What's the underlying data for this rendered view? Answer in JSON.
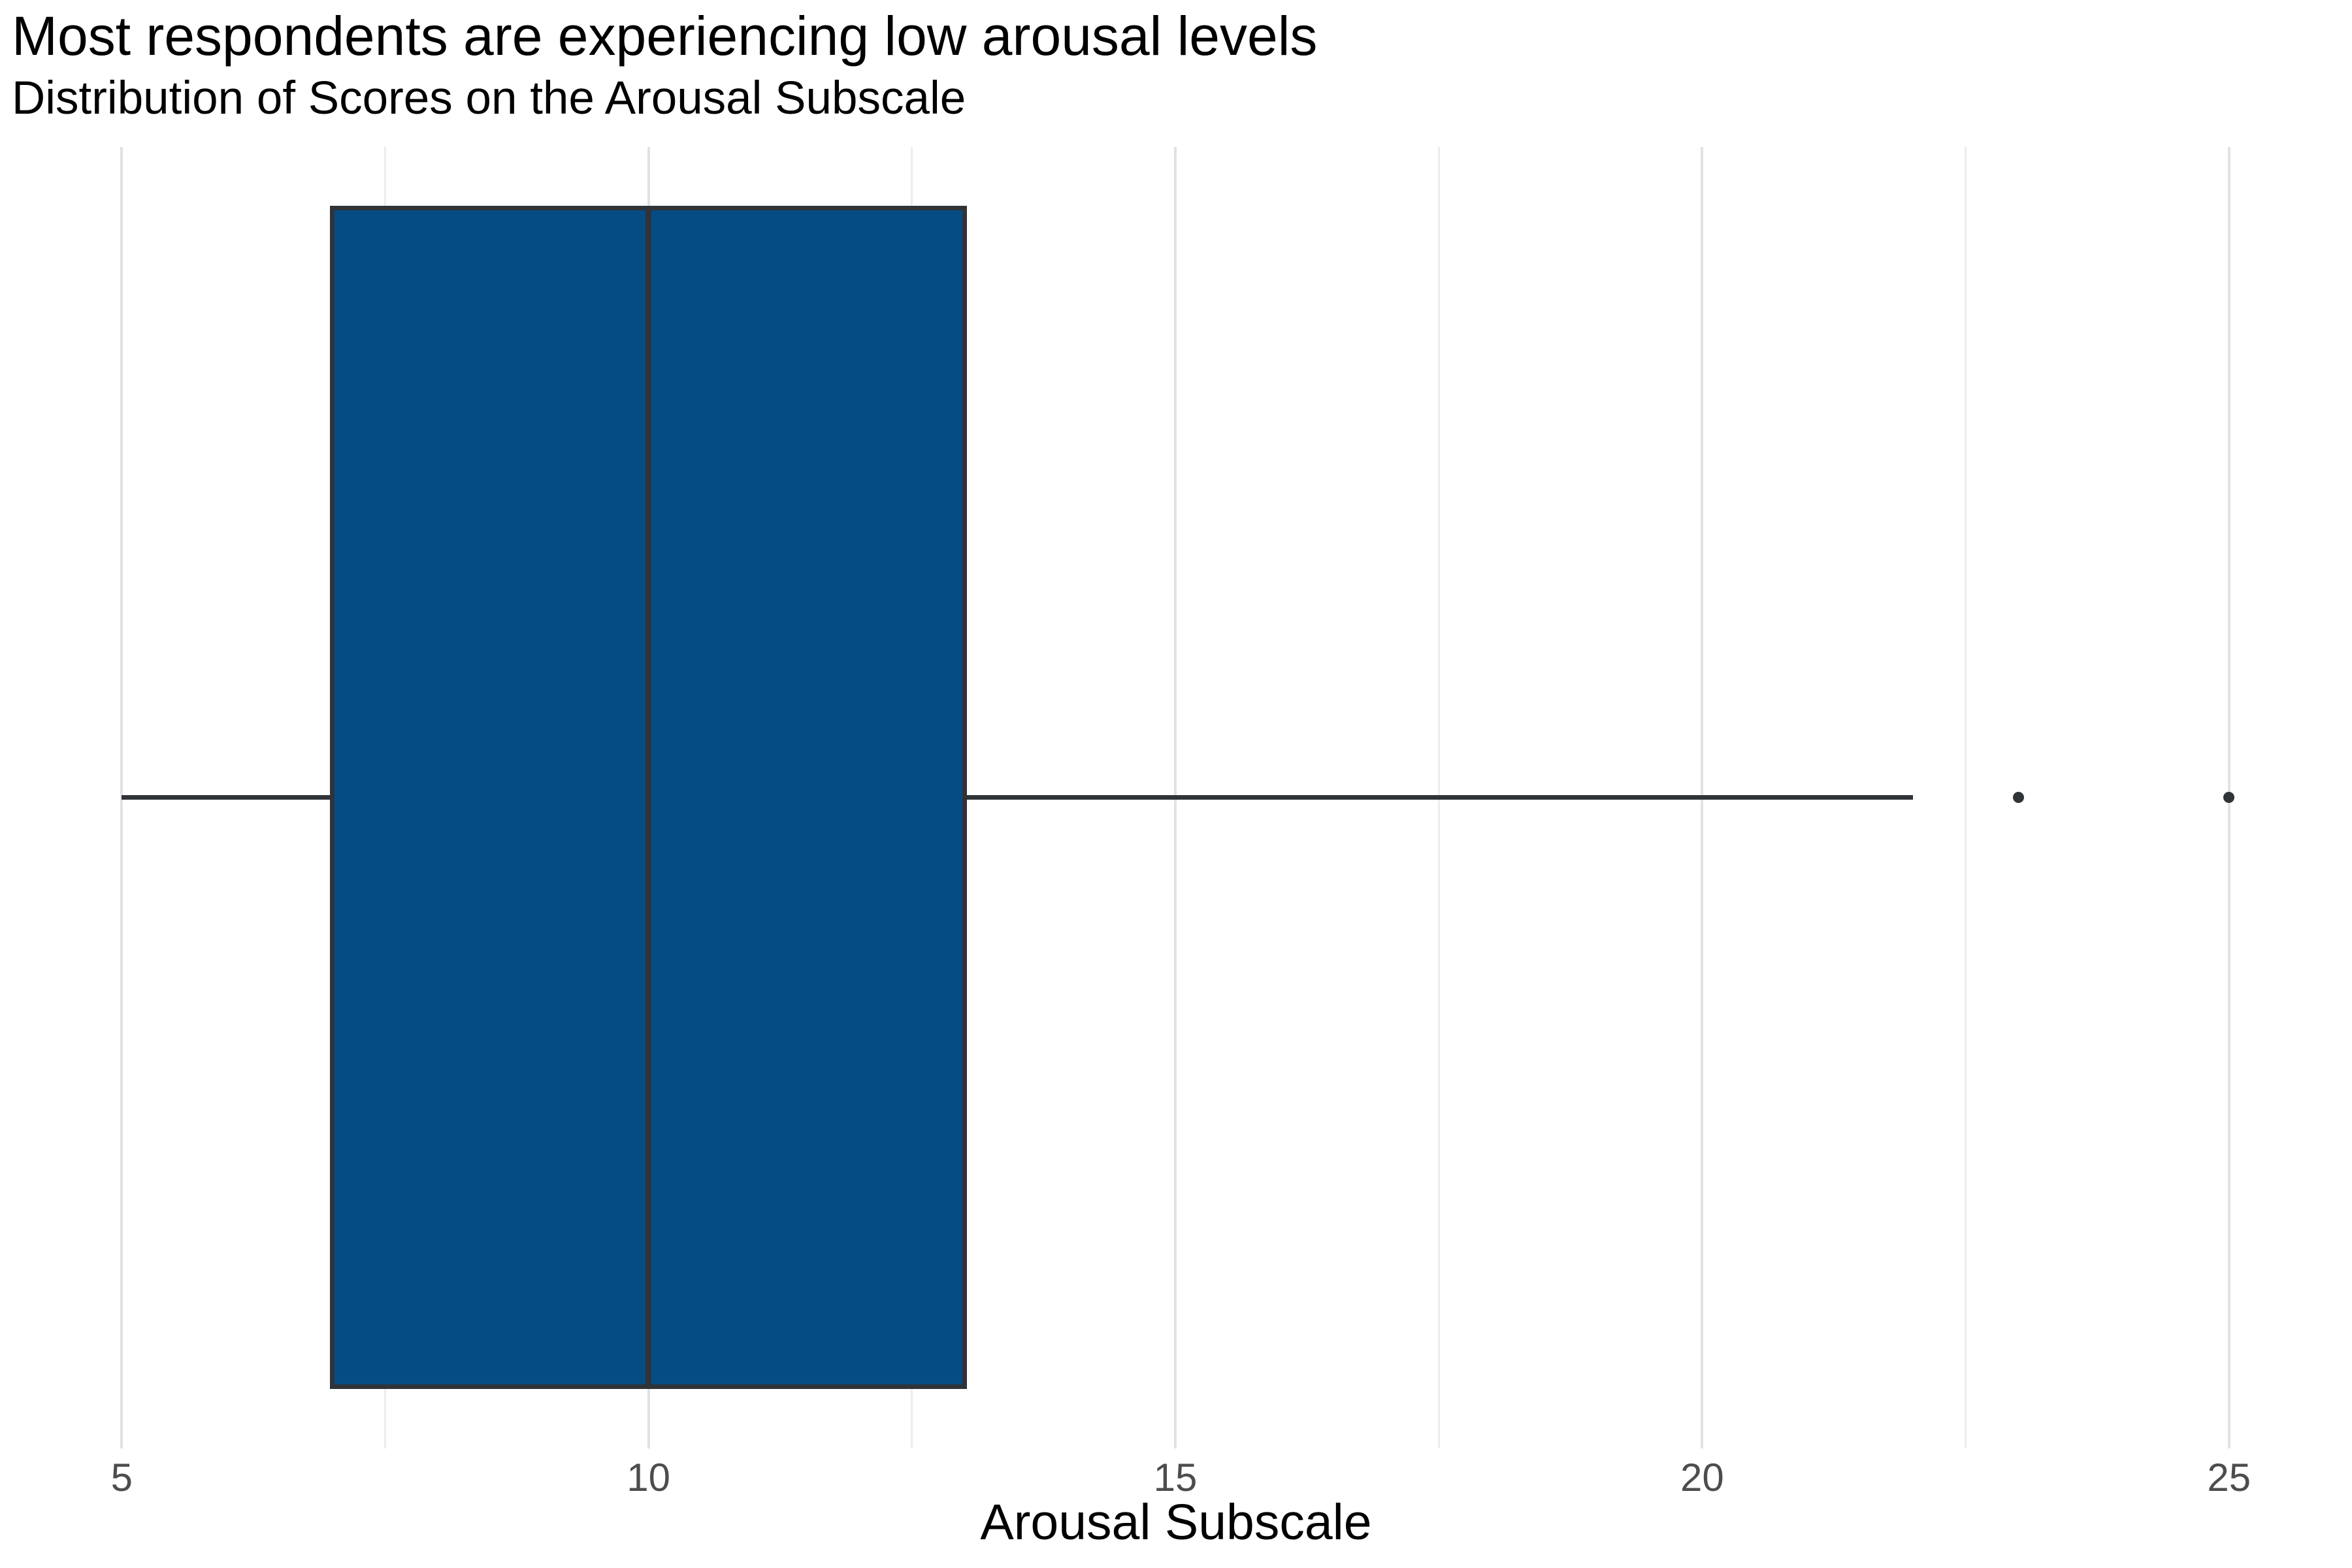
{
  "chart_data": {
    "type": "boxplot",
    "orientation": "horizontal",
    "title": "Most respondents are experiencing low arousal levels",
    "subtitle": "Distribution of Scores on the Arousal Subscale",
    "xlabel": "Arousal Subscale",
    "ylabel": "",
    "xlim": [
      4,
      26
    ],
    "x_major_ticks": [
      5,
      10,
      15,
      20,
      25
    ],
    "x_minor_gridlines": [
      7.5,
      12.5,
      17.5,
      22.5
    ],
    "grid": "vertical gridlines only, no axis lines, white background",
    "legend": false,
    "series": [
      {
        "name": "Arousal Subscale",
        "whisker_min": 5,
        "q1": 7,
        "median": 10,
        "q3": 13,
        "whisker_max": 22,
        "outliers": [
          23,
          25
        ]
      }
    ],
    "colors": {
      "box_fill": "#054C85",
      "box_border": "#303338",
      "whisker_line": "#303338",
      "median_line": "#303338",
      "outlier_point": "#303338",
      "grid_major": "#E2E2E2",
      "grid_minor": "#EDEDED",
      "tick_label": "#4D4D4D",
      "title_text": "#000000",
      "background": "#FFFFFF"
    }
  }
}
